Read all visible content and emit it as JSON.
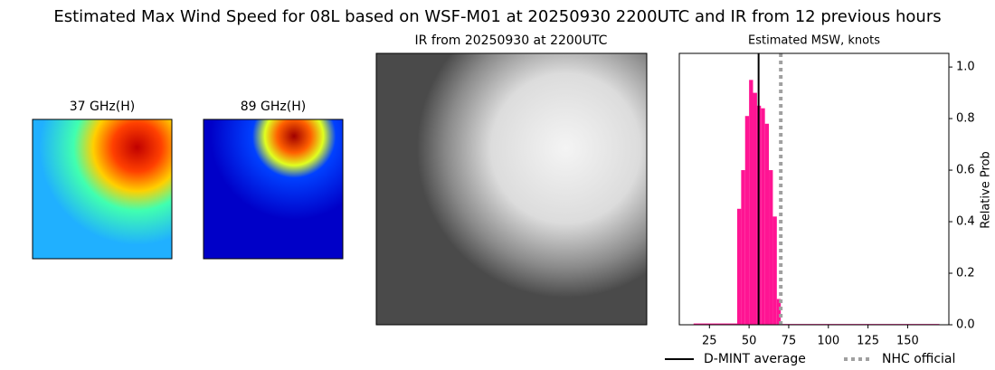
{
  "title": "Estimated Max Wind Speed for 08L based on WSF-M01 at 20250930 2200UTC and IR from 12 previous hours",
  "panels": [
    {
      "title": "37 GHz(H)"
    },
    {
      "title": "89 GHz(H)"
    },
    {
      "title": "IR from 20250930 at 2200UTC"
    }
  ],
  "chart_data": {
    "type": "histogram",
    "title": "Estimated MSW, knots",
    "ylabel": "Relative Prob",
    "color": "#ff1493",
    "bins": [
      15,
      42.5,
      45,
      47.5,
      50,
      52.5,
      55,
      57.5,
      60,
      62.5,
      65,
      67.5,
      70,
      170
    ],
    "counts": [
      0.005,
      0.45,
      0.6,
      0.81,
      0.95,
      0.9,
      0.85,
      0.84,
      0.78,
      0.6,
      0.42,
      0.1,
      0.003
    ],
    "xlim": [
      6,
      176
    ],
    "xticks": [
      25,
      50,
      75,
      100,
      125,
      150
    ],
    "ylim": [
      0,
      1.053
    ],
    "yticks": [
      {
        "value": 0,
        "label": "0.0"
      },
      0.2,
      0.4,
      0.6,
      0.8,
      {
        "value": 1,
        "label": "1.0"
      }
    ],
    "lines": [
      {
        "name": "D-MINT average",
        "value": 56,
        "color": "#000000",
        "style": "solid"
      },
      {
        "name": "NHC official",
        "value": 70,
        "color": "#a0a0a0",
        "style": "dotted"
      }
    ]
  }
}
